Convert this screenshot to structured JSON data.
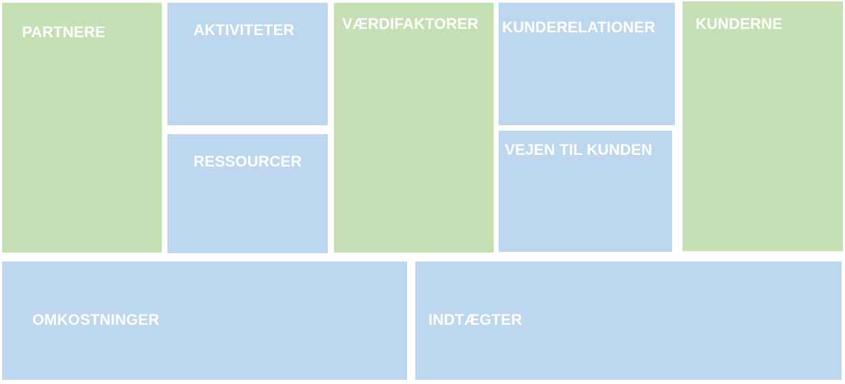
{
  "canvas": {
    "blocks": {
      "partnere": {
        "label": "PARTNERE",
        "color": "#c5e0b4"
      },
      "aktiviteter": {
        "label": "AKTIVITETER",
        "color": "#bdd7ee"
      },
      "ressourcer": {
        "label": "RESSOURCER",
        "color": "#bdd7ee"
      },
      "vaerdifaktorer": {
        "label": "VÆRDIFAKTORER",
        "color": "#c5e0b4"
      },
      "kunderelationer": {
        "label": "KUNDERELATIONER",
        "color": "#bdd7ee"
      },
      "vejen_til_kunden": {
        "label": "VEJEN TIL KUNDEN",
        "color": "#bdd7ee"
      },
      "kunderne": {
        "label": "KUNDERNE",
        "color": "#c5e0b4"
      },
      "omkostninger": {
        "label": "OMKOSTNINGER",
        "color": "#bdd7ee"
      },
      "indtaegter": {
        "label": "INDTÆGTER",
        "color": "#bdd7ee"
      }
    }
  }
}
